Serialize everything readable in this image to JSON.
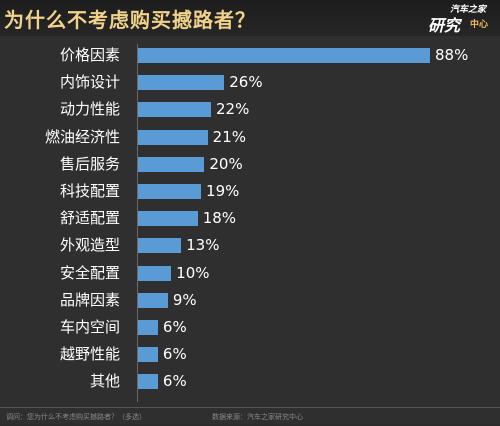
{
  "header": {
    "title": "为什么不考虑购买撼路者？",
    "logo_line1": "汽车之家",
    "logo_line2": "研究",
    "logo_line3": "中心"
  },
  "footer": {
    "question": "调问：您为什么不考虑购买撼路者？（多选）",
    "source": "数据来源：汽车之家研究中心"
  },
  "colors": {
    "bar": "#5b9bd5",
    "title": "#f0d28a",
    "background": "#2f2f2f"
  },
  "chart_data": {
    "type": "bar",
    "orientation": "horizontal",
    "title": "为什么不考虑购买撼路者？",
    "categories": [
      "价格因素",
      "内饰设计",
      "动力性能",
      "燃油经济性",
      "售后服务",
      "科技配置",
      "舒适配置",
      "外观造型",
      "安全配置",
      "品牌因素",
      "车内空间",
      "越野性能",
      "其他"
    ],
    "values": [
      88,
      26,
      22,
      21,
      20,
      19,
      18,
      13,
      10,
      9,
      6,
      6,
      6
    ],
    "value_labels": [
      "88%",
      "26%",
      "22%",
      "21%",
      "20%",
      "19%",
      "18%",
      "13%",
      "10%",
      "9%",
      "6%",
      "6%",
      "6%"
    ],
    "xlim": [
      0,
      88
    ],
    "grid": false,
    "legend": "none"
  }
}
